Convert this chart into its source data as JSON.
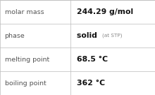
{
  "rows": [
    {
      "label": "molar mass",
      "value": "244.29 g/mol",
      "value2": null
    },
    {
      "label": "phase",
      "value": "solid",
      "value2": "(at STP)"
    },
    {
      "label": "melting point",
      "value": "68.5 °C",
      "value2": null
    },
    {
      "label": "boiling point",
      "value": "362 °C",
      "value2": null
    }
  ],
  "bg_color": "#ffffff",
  "border_color": "#bbbbbb",
  "label_color": "#555555",
  "value_color": "#111111",
  "value2_color": "#888888",
  "label_fontsize": 6.8,
  "value_fontsize": 7.8,
  "value2_fontsize": 5.2,
  "col_split": 0.455
}
